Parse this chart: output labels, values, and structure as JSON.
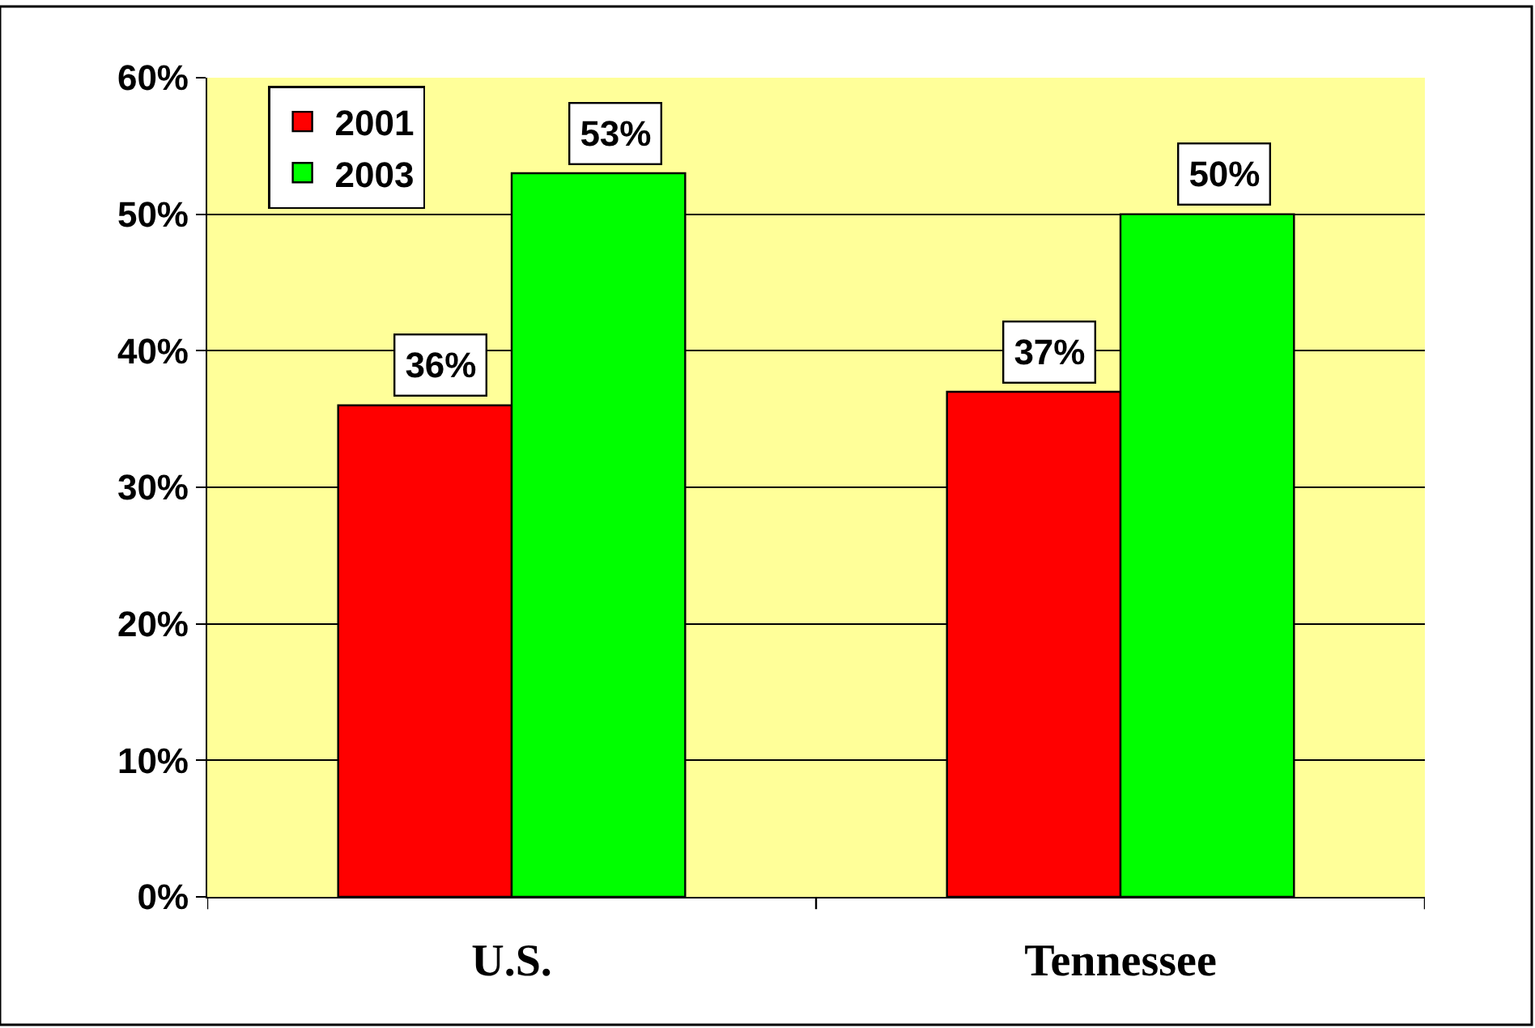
{
  "chart_data": {
    "type": "bar",
    "categories": [
      "U.S.",
      "Tennessee"
    ],
    "series": [
      {
        "name": "2001",
        "color": "#ff0000",
        "values": [
          36,
          37
        ],
        "value_labels": [
          "36%",
          "37%"
        ]
      },
      {
        "name": "2003",
        "color": "#00ff00",
        "values": [
          53,
          50
        ],
        "value_labels": [
          "53%",
          "50%"
        ]
      }
    ],
    "ylim": [
      0,
      60
    ],
    "yticks": [
      {
        "value": 0,
        "label": "0%"
      },
      {
        "value": 10,
        "label": "10%"
      },
      {
        "value": 20,
        "label": "20%"
      },
      {
        "value": 30,
        "label": "30%"
      },
      {
        "value": 40,
        "label": "40%"
      },
      {
        "value": 50,
        "label": "50%"
      },
      {
        "value": 60,
        "label": "60%"
      }
    ],
    "grid": "y",
    "legend": "top left"
  }
}
